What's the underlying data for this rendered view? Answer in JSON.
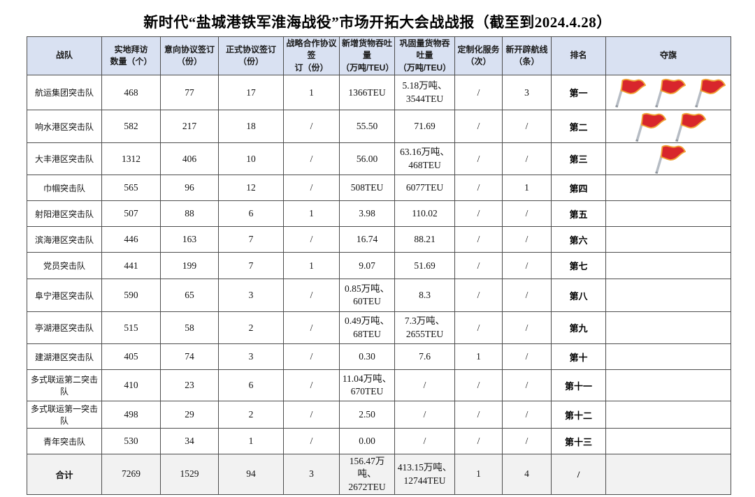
{
  "title": "新时代“盐城港铁军淮海战役”市场开拓大会战战报（截至到2024.4.28）",
  "colors": {
    "header_bg": "#d9e1f2",
    "total_row_bg": "#f2f2f2",
    "grid_line": "#4d4d4d",
    "flag_red": "#d8262c",
    "flag_trim": "#f0a135",
    "flag_pole": "#b6bcc4"
  },
  "table": {
    "columns": [
      "战队",
      "实地拜访\n数量（个）",
      "意向协议签订\n（份）",
      "正式协议签订\n（份）",
      "战略合作协议签\n订（份）",
      "新增货物吞吐量\n（万吨/TEU）",
      "巩固量货物吞吐量\n（万吨/TEU）",
      "定制化服务\n（次）",
      "新开辟航线\n（条）",
      "排名",
      "夺旗"
    ],
    "rows": [
      {
        "team": "航运集团突击队",
        "visits": "468",
        "intent": "77",
        "formal": "17",
        "strategic": "1",
        "new_throughput": "1366TEU",
        "consolidated": "5.18万吨、\n3544TEU",
        "custom_service": "/",
        "new_routes": "3",
        "rank": "第一",
        "flags": 3
      },
      {
        "team": "响水港区突击队",
        "visits": "582",
        "intent": "217",
        "formal": "18",
        "strategic": "/",
        "new_throughput": "55.50",
        "consolidated": "71.69",
        "custom_service": "/",
        "new_routes": "/",
        "rank": "第二",
        "flags": 2
      },
      {
        "team": "大丰港区突击队",
        "visits": "1312",
        "intent": "406",
        "formal": "10",
        "strategic": "/",
        "new_throughput": "56.00",
        "consolidated": "63.16万吨、\n468TEU",
        "custom_service": "/",
        "new_routes": "/",
        "rank": "第三",
        "flags": 1
      },
      {
        "team": "巾帼突击队",
        "visits": "565",
        "intent": "96",
        "formal": "12",
        "strategic": "/",
        "new_throughput": "508TEU",
        "consolidated": "6077TEU",
        "custom_service": "/",
        "new_routes": "1",
        "rank": "第四",
        "flags": 0
      },
      {
        "team": "射阳港区突击队",
        "visits": "507",
        "intent": "88",
        "formal": "6",
        "strategic": "1",
        "new_throughput": "3.98",
        "consolidated": "110.02",
        "custom_service": "/",
        "new_routes": "/",
        "rank": "第五",
        "flags": 0
      },
      {
        "team": "滨海港区突击队",
        "visits": "446",
        "intent": "163",
        "formal": "7",
        "strategic": "/",
        "new_throughput": "16.74",
        "consolidated": "88.21",
        "custom_service": "/",
        "new_routes": "/",
        "rank": "第六",
        "flags": 0
      },
      {
        "team": "党员突击队",
        "visits": "441",
        "intent": "199",
        "formal": "7",
        "strategic": "1",
        "new_throughput": "9.07",
        "consolidated": "51.69",
        "custom_service": "/",
        "new_routes": "/",
        "rank": "第七",
        "flags": 0
      },
      {
        "team": "阜宁港区突击队",
        "visits": "590",
        "intent": "65",
        "formal": "3",
        "strategic": "/",
        "new_throughput": "0.85万吨、\n60TEU",
        "consolidated": "8.3",
        "custom_service": "/",
        "new_routes": "/",
        "rank": "第八",
        "flags": 0
      },
      {
        "team": "亭湖港区突击队",
        "visits": "515",
        "intent": "58",
        "formal": "2",
        "strategic": "/",
        "new_throughput": "0.49万吨、\n68TEU",
        "consolidated": "7.3万吨、\n2655TEU",
        "custom_service": "/",
        "new_routes": "/",
        "rank": "第九",
        "flags": 0
      },
      {
        "team": "建湖港区突击队",
        "visits": "405",
        "intent": "74",
        "formal": "3",
        "strategic": "/",
        "new_throughput": "0.30",
        "consolidated": "7.6",
        "custom_service": "1",
        "new_routes": "/",
        "rank": "第十",
        "flags": 0
      },
      {
        "team": "多式联运第二突击队",
        "visits": "410",
        "intent": "23",
        "formal": "6",
        "strategic": "/",
        "new_throughput": "11.04万吨、\n670TEU",
        "consolidated": "/",
        "custom_service": "/",
        "new_routes": "/",
        "rank": "第十一",
        "flags": 0
      },
      {
        "team": "多式联运第一突击队",
        "visits": "498",
        "intent": "29",
        "formal": "2",
        "strategic": "/",
        "new_throughput": "2.50",
        "consolidated": "/",
        "custom_service": "/",
        "new_routes": "/",
        "rank": "第十二",
        "flags": 0
      },
      {
        "team": "青年突击队",
        "visits": "530",
        "intent": "34",
        "formal": "1",
        "strategic": "/",
        "new_throughput": "0.00",
        "consolidated": "/",
        "custom_service": "/",
        "new_routes": "/",
        "rank": "第十三",
        "flags": 0
      }
    ],
    "total": {
      "team": "合计",
      "visits": "7269",
      "intent": "1529",
      "formal": "94",
      "strategic": "3",
      "new_throughput": "156.47万吨、\n2672TEU",
      "consolidated": "413.15万吨、\n12744TEU",
      "custom_service": "1",
      "new_routes": "4",
      "rank": "/",
      "flags": 0
    }
  }
}
